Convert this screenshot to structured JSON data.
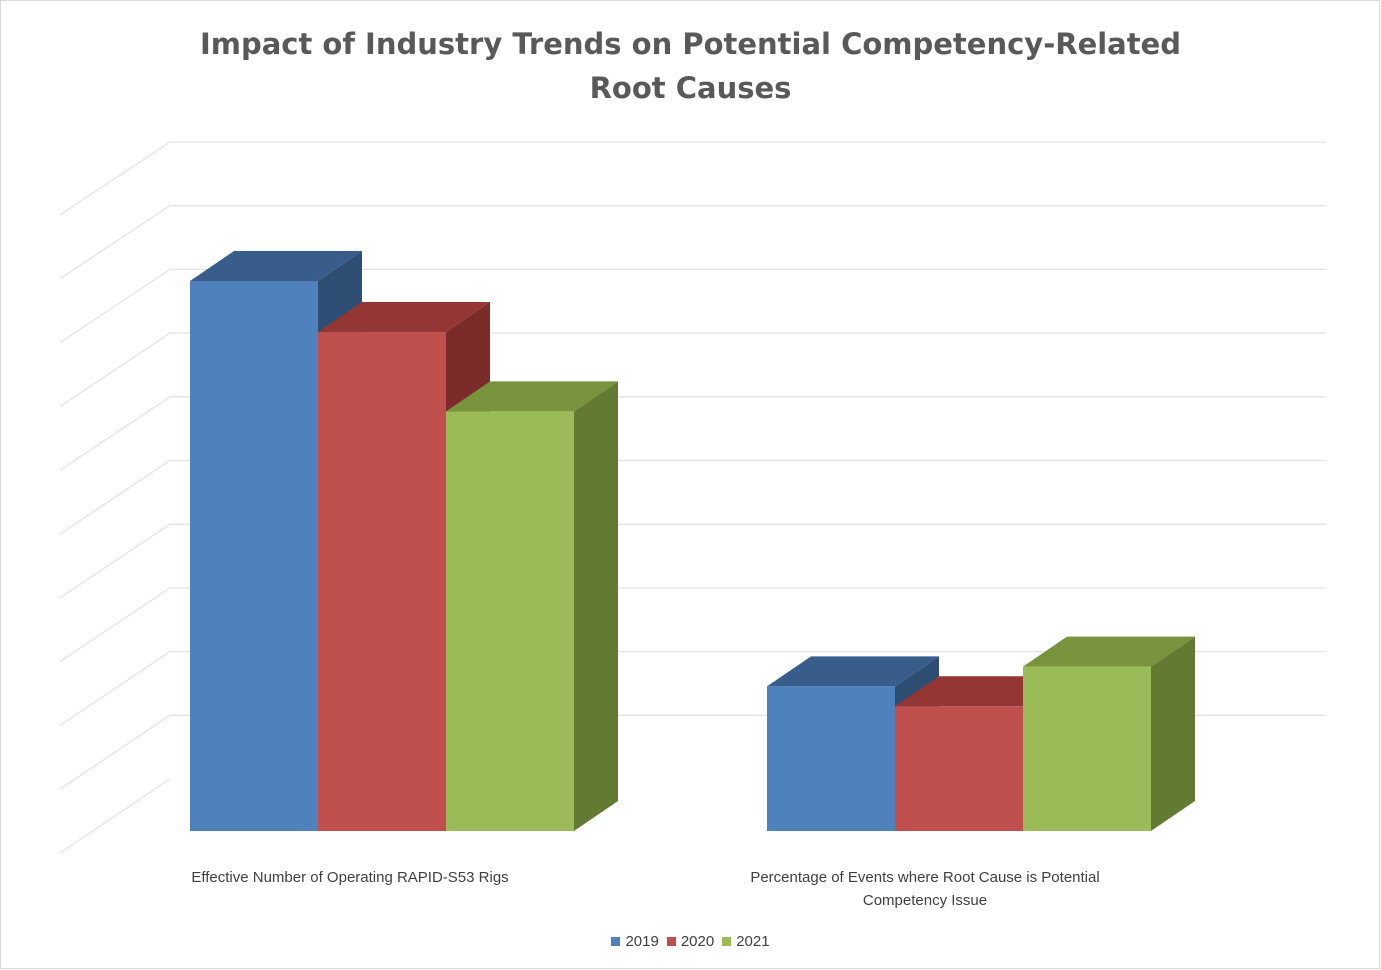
{
  "chart_data": {
    "type": "bar",
    "title": "Impact of Industry Trends on Potential Competency-Related Root Causes",
    "title_lines": [
      "Impact of Industry Trends on Potential Competency-Related",
      "Root Causes"
    ],
    "categories": [
      "Effective Number of Operating RAPID-S53 Rigs",
      "Percentage of Events where Root Cause is Potential Competency Issue"
    ],
    "category_lines": [
      [
        "Effective Number of Operating RAPID-S53 Rigs"
      ],
      [
        "Percentage of Events where Root Cause is Potential",
        "Competency Issue"
      ]
    ],
    "series": [
      {
        "name": "2019",
        "values": [
          9.7,
          2.55
        ],
        "color": "#4f81bd",
        "top_color": "#385d8a",
        "side_color": "#2e4d73"
      },
      {
        "name": "2020",
        "values": [
          8.8,
          2.2
        ],
        "color": "#c0504d",
        "top_color": "#943634",
        "side_color": "#7b2c2a"
      },
      {
        "name": "2021",
        "values": [
          7.4,
          2.9
        ],
        "color": "#9bbb59",
        "top_color": "#77933c",
        "side_color": "#637a33"
      }
    ],
    "ylim": [
      0,
      11
    ],
    "gridlines": 11,
    "grid": true,
    "y_tick_labels_visible": false,
    "legend_position": "bottom",
    "style": "3d-clustered-column"
  }
}
